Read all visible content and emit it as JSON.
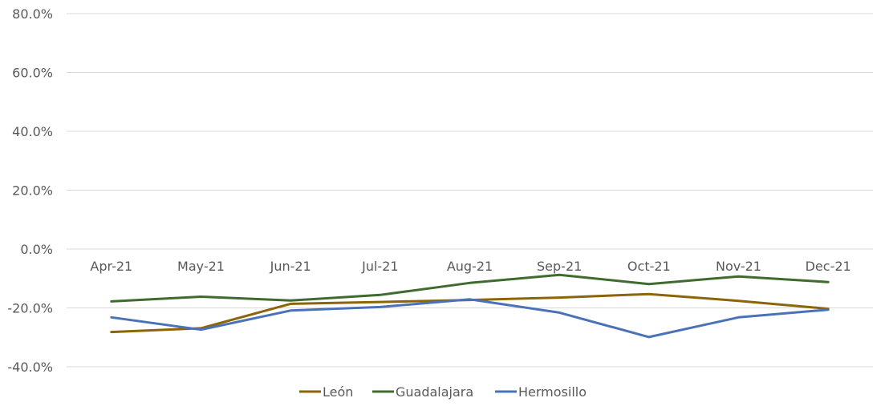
{
  "chart_data": {
    "type": "line",
    "title": "",
    "xlabel": "",
    "ylabel": "",
    "categories": [
      "Apr-21",
      "May-21",
      "Jun-21",
      "Jul-21",
      "Aug-21",
      "Sep-21",
      "Oct-21",
      "Nov-21",
      "Dec-21"
    ],
    "ylim": [
      -40,
      80
    ],
    "yticks": [
      80,
      60,
      40,
      20,
      0,
      -20,
      -40
    ],
    "ytick_labels": [
      "80.0%",
      "60.0%",
      "40.0%",
      "20.0%",
      "0.0%",
      "-20.0%",
      "-40.0%"
    ],
    "grid": true,
    "legend_position": "bottom",
    "series": [
      {
        "name": "León",
        "color": "#8B6508",
        "values": [
          -28.2,
          -26.9,
          -18.6,
          -18.0,
          -17.3,
          -16.5,
          -15.3,
          -17.6,
          -20.3
        ]
      },
      {
        "name": "Guadalajara",
        "color": "#3F6B2E",
        "values": [
          -17.8,
          -16.2,
          -17.5,
          -15.6,
          -11.5,
          -8.8,
          -11.9,
          -9.3,
          -11.2
        ]
      },
      {
        "name": "Hermosillo",
        "color": "#4A72B8",
        "values": [
          -23.2,
          -27.4,
          -20.9,
          -19.7,
          -17.1,
          -21.6,
          -29.9,
          -23.2,
          -20.6
        ]
      }
    ]
  }
}
